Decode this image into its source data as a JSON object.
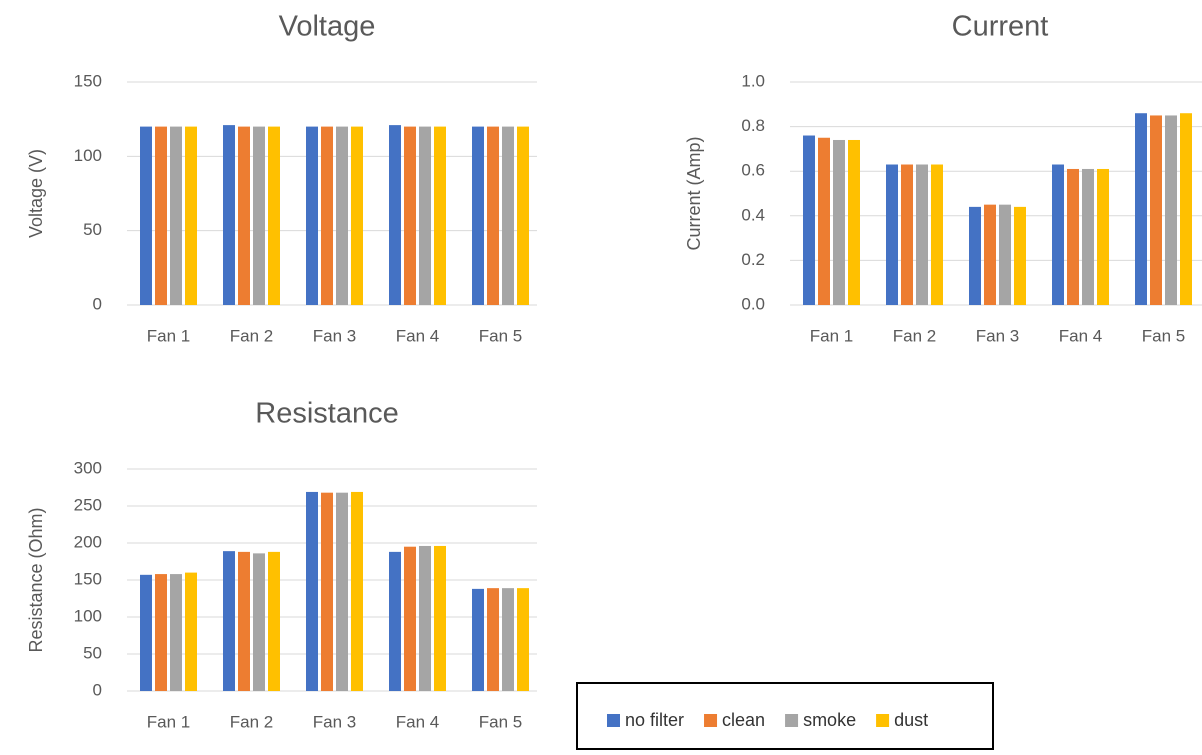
{
  "legend": [
    {
      "name": "no filter",
      "color": "#4472c4"
    },
    {
      "name": "clean",
      "color": "#ed7d31"
    },
    {
      "name": "smoke",
      "color": "#a5a5a5"
    },
    {
      "name": "dust",
      "color": "#ffc000"
    }
  ],
  "chart_data": [
    {
      "type": "bar",
      "title": "Voltage",
      "y_label": "Voltage (V)",
      "categories": [
        "Fan 1",
        "Fan 2",
        "Fan 3",
        "Fan 4",
        "Fan 5"
      ],
      "series": [
        {
          "values": [
            120,
            121,
            120,
            121,
            120
          ]
        },
        {
          "values": [
            120,
            120,
            120,
            120,
            120
          ]
        },
        {
          "values": [
            120,
            120,
            120,
            120,
            120
          ]
        },
        {
          "values": [
            120,
            120,
            120,
            120,
            120
          ]
        }
      ],
      "ylim": [
        0,
        150
      ],
      "yticks": [
        0,
        50,
        100,
        150
      ],
      "grid": true
    },
    {
      "type": "bar",
      "title": "Current",
      "y_label": "Current (Amp)",
      "categories": [
        "Fan 1",
        "Fan 2",
        "Fan 3",
        "Fan 4",
        "Fan 5"
      ],
      "series": [
        {
          "values": [
            0.76,
            0.63,
            0.44,
            0.63,
            0.86
          ]
        },
        {
          "values": [
            0.75,
            0.63,
            0.45,
            0.61,
            0.85
          ]
        },
        {
          "values": [
            0.74,
            0.63,
            0.45,
            0.61,
            0.85
          ]
        },
        {
          "values": [
            0.74,
            0.63,
            0.44,
            0.61,
            0.86
          ]
        }
      ],
      "ylim": [
        0,
        1
      ],
      "yticks": [
        {
          "value": 0,
          "label": "0.0"
        },
        0.2,
        0.4,
        0.6,
        0.8,
        {
          "value": 1,
          "label": "1.0"
        }
      ],
      "grid": true
    },
    {
      "type": "bar",
      "title": "Resistance",
      "y_label": "Resistance (Ohm)",
      "categories": [
        "Fan 1",
        "Fan 2",
        "Fan 3",
        "Fan 4",
        "Fan 5"
      ],
      "series": [
        {
          "values": [
            157,
            189,
            269,
            188,
            138
          ]
        },
        {
          "values": [
            158,
            188,
            268,
            195,
            139
          ]
        },
        {
          "values": [
            158,
            186,
            268,
            196,
            139
          ]
        },
        {
          "values": [
            160,
            188,
            269,
            196,
            139
          ]
        }
      ],
      "ylim": [
        0,
        300
      ],
      "yticks": [
        0,
        50,
        100,
        150,
        200,
        250,
        300
      ],
      "grid": true
    }
  ]
}
